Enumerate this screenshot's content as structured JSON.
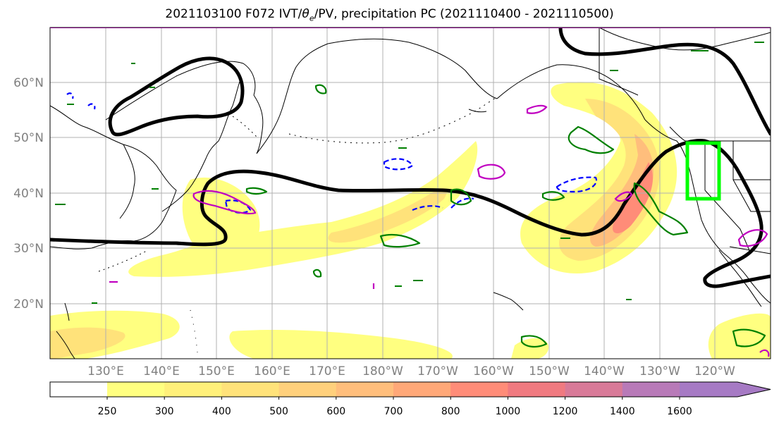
{
  "title": {
    "run": "2021103100",
    "forecast": "F072",
    "fields_prefix": "IVT/",
    "theta": "θ",
    "theta_sub": "e",
    "fields_suffix": "/PV, precipitation PC",
    "period": "(2021110400 - 2021110500)"
  },
  "lat_labels": [
    "60°N",
    "50°N",
    "40°N",
    "30°N",
    "20°N"
  ],
  "lon_labels": [
    "130°E",
    "140°E",
    "150°E",
    "160°E",
    "170°E",
    "180°W",
    "170°W",
    "160°W",
    "150°W",
    "140°W",
    "130°W",
    "120°W"
  ],
  "colorbar": {
    "levels": [
      "250",
      "300",
      "400",
      "500",
      "600",
      "700",
      "800",
      "1000",
      "1200",
      "1400",
      "1600"
    ],
    "colors": [
      "#ffff80",
      "#fff07a",
      "#ffe27a",
      "#ffd07c",
      "#ffbe7c",
      "#ffa878",
      "#ff8c78",
      "#f07a80",
      "#d87a98",
      "#b87ab8",
      "#a67ac4"
    ]
  },
  "map": {
    "projection": "equirectangular",
    "lon_range": [
      120,
      250
    ],
    "lat_range": [
      10,
      70
    ],
    "grid": true,
    "contour_colors": {
      "pv_line": "#000000",
      "precip_pos": "#008000",
      "precip_neg": "#0000ff",
      "theta_e": "#c000c0",
      "target_box": "#00ff00",
      "coast": "#000000"
    },
    "target_box": {
      "lon_min": -125,
      "lon_max": -120,
      "lat_min": 39,
      "lat_max": 49
    }
  }
}
